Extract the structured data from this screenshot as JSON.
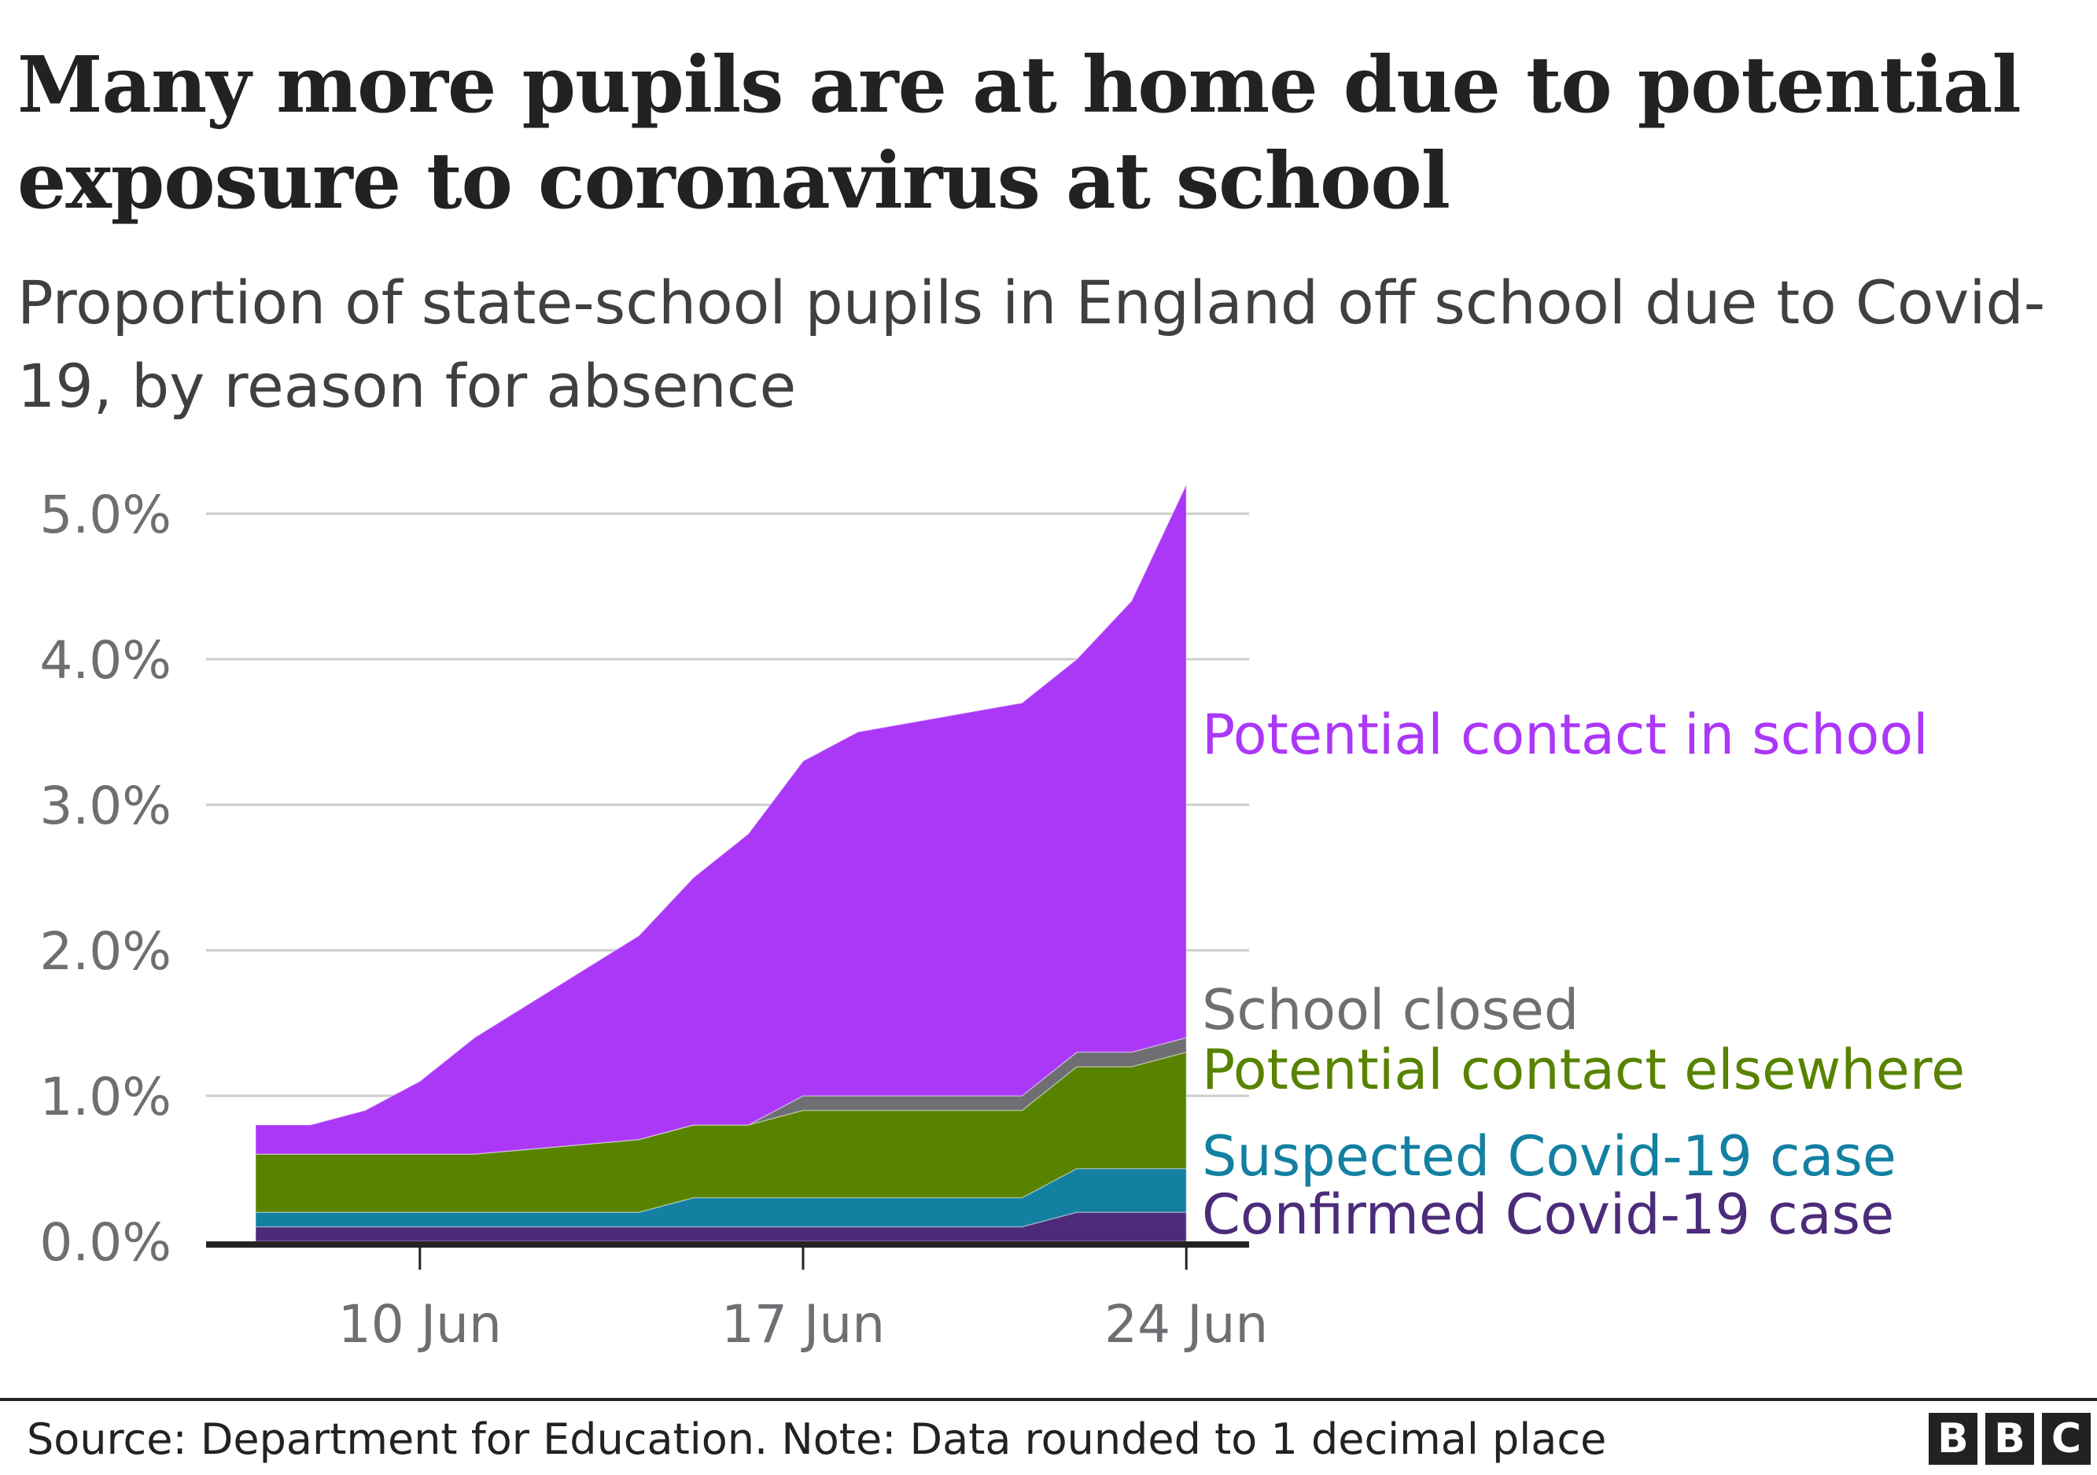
{
  "title": "Many more pupils are at home due to potential exposure to coronavirus at school",
  "subtitle": "Proportion of state-school pupils in England off school due to Covid-19, by reason for absence",
  "footer": {
    "source": "Source: Department for Education. Note: Data rounded to 1 decimal place",
    "logo_letters": [
      "B",
      "B",
      "C"
    ]
  },
  "colors": {
    "confirmed": "#4c2c7a",
    "suspected": "#1380a1",
    "elsewhere": "#588300",
    "school_closed": "#6e6e73",
    "in_school": "#ab37f7",
    "gridline": "#cccccc",
    "axis": "#222222",
    "tick_label": "#6e6e73"
  },
  "chart_data": {
    "type": "area",
    "stacked": true,
    "title": "Many more pupils are at home due to potential exposure to coronavirus at school",
    "subtitle": "Proportion of state-school pupils in England off school due to Covid-19, by reason for absence",
    "xlabel": "",
    "ylabel": "",
    "ylim": [
      0,
      5.0
    ],
    "yticks": [
      "0.0%",
      "1.0%",
      "2.0%",
      "3.0%",
      "4.0%",
      "5.0%"
    ],
    "xticks": [
      "10 Jun",
      "17 Jun",
      "24 Jun"
    ],
    "grid": true,
    "legend_position": "inline-right",
    "x": [
      "7 Jun",
      "8 Jun",
      "9 Jun",
      "10 Jun",
      "11 Jun",
      "14 Jun",
      "15 Jun",
      "16 Jun",
      "17 Jun",
      "18 Jun",
      "21 Jun",
      "22 Jun",
      "23 Jun",
      "24 Jun"
    ],
    "x_day_index": [
      0,
      1,
      2,
      3,
      4,
      7,
      8,
      9,
      10,
      11,
      14,
      15,
      16,
      17
    ],
    "series": [
      {
        "name": "Confirmed Covid-19 case",
        "values": [
          0.1,
          0.1,
          0.1,
          0.1,
          0.1,
          0.1,
          0.1,
          0.1,
          0.1,
          0.1,
          0.1,
          0.2,
          0.2,
          0.2
        ]
      },
      {
        "name": "Suspected Covid-19 case",
        "values": [
          0.1,
          0.1,
          0.1,
          0.1,
          0.1,
          0.1,
          0.2,
          0.2,
          0.2,
          0.2,
          0.2,
          0.3,
          0.3,
          0.3
        ]
      },
      {
        "name": "Potential contact elsewhere",
        "values": [
          0.4,
          0.4,
          0.4,
          0.4,
          0.4,
          0.5,
          0.5,
          0.5,
          0.6,
          0.6,
          0.6,
          0.7,
          0.7,
          0.8
        ]
      },
      {
        "name": "School closed",
        "values": [
          0.0,
          0.0,
          0.0,
          0.0,
          0.0,
          0.0,
          0.0,
          0.0,
          0.1,
          0.1,
          0.1,
          0.1,
          0.1,
          0.1
        ]
      },
      {
        "name": "Potential contact in school",
        "values": [
          0.2,
          0.2,
          0.3,
          0.5,
          0.8,
          1.4,
          1.7,
          2.0,
          2.3,
          2.5,
          2.7,
          2.7,
          3.1,
          3.8
        ]
      }
    ],
    "totals": [
      0.8,
      0.8,
      0.9,
      1.1,
      1.4,
      2.1,
      2.5,
      2.8,
      3.3,
      3.5,
      3.7,
      4.0,
      4.4,
      5.2
    ]
  },
  "series_labels": {
    "in_school": "Potential contact in school",
    "school_closed": "School closed",
    "elsewhere": "Potential contact elsewhere",
    "suspected": "Suspected Covid-19 case",
    "confirmed": "Confirmed Covid-19 case"
  }
}
